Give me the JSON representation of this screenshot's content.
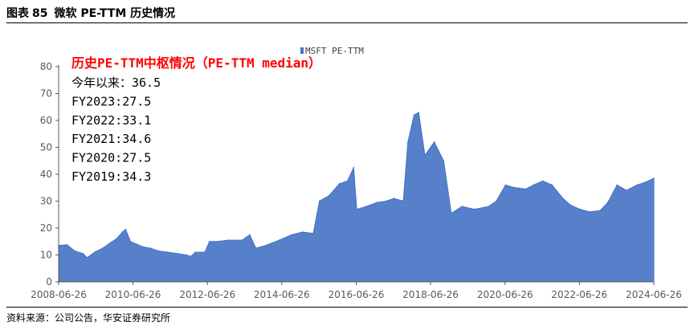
{
  "figure": {
    "label": "图表",
    "number": "85",
    "title": "微软 PE-TTM 历史情况"
  },
  "source": "资料来源：公司公告，华安证券研究所",
  "annotations": {
    "title": "历史PE-TTM中枢情况（PE-TTM median）",
    "lines": [
      "今年以来：36.5",
      "FY2023:27.5",
      "FY2022:33.1",
      "FY2021:34.6",
      "FY2020:27.5",
      "FY2019:34.3"
    ]
  },
  "colors": {
    "series": "#4472c4",
    "annotation_title": "#ff0000",
    "axis": "#595959"
  },
  "chart_data": {
    "type": "area",
    "title": "",
    "xlabel": "",
    "ylabel": "",
    "xlim": [
      "2008-06-26",
      "2024-06-26"
    ],
    "ylim": [
      0,
      80
    ],
    "yticks": [
      0,
      10,
      20,
      30,
      40,
      50,
      60,
      70,
      80
    ],
    "xticks": [
      "2008-06-26",
      "2010-06-26",
      "2012-06-26",
      "2014-06-26",
      "2016-06-26",
      "2018-06-26",
      "2020-06-26",
      "2022-06-26",
      "2024-06-26"
    ],
    "grid": false,
    "legend": "top-center",
    "series": [
      {
        "name": "MSFT PE-TTM",
        "points": [
          [
            "2008-06-26",
            13.5
          ],
          [
            "2008-09-15",
            13.8
          ],
          [
            "2008-12-01",
            11.5
          ],
          [
            "2009-02-20",
            10.5
          ],
          [
            "2009-04-01",
            9.0
          ],
          [
            "2009-06-15",
            11.0
          ],
          [
            "2009-09-01",
            12.5
          ],
          [
            "2009-11-15",
            14.5
          ],
          [
            "2010-01-15",
            16.0
          ],
          [
            "2010-03-15",
            18.5
          ],
          [
            "2010-04-15",
            19.5
          ],
          [
            "2010-06-01",
            15.0
          ],
          [
            "2010-08-01",
            14.0
          ],
          [
            "2010-10-01",
            13.0
          ],
          [
            "2010-12-15",
            12.5
          ],
          [
            "2011-03-01",
            11.5
          ],
          [
            "2011-06-01",
            11.0
          ],
          [
            "2011-09-01",
            10.5
          ],
          [
            "2011-12-01",
            10.0
          ],
          [
            "2012-01-15",
            9.5
          ],
          [
            "2012-03-01",
            11.0
          ],
          [
            "2012-06-01",
            11.0
          ],
          [
            "2012-07-15",
            15.0
          ],
          [
            "2012-10-01",
            15.0
          ],
          [
            "2013-01-15",
            15.5
          ],
          [
            "2013-06-01",
            15.5
          ],
          [
            "2013-08-15",
            17.5
          ],
          [
            "2013-10-15",
            12.5
          ],
          [
            "2014-01-15",
            13.5
          ],
          [
            "2014-06-01",
            15.5
          ],
          [
            "2014-10-01",
            17.5
          ],
          [
            "2015-01-15",
            18.5
          ],
          [
            "2015-05-01",
            18.0
          ],
          [
            "2015-07-01",
            30.0
          ],
          [
            "2015-10-01",
            32.0
          ],
          [
            "2016-01-15",
            36.5
          ],
          [
            "2016-04-01",
            37.5
          ],
          [
            "2016-06-01",
            42.5
          ],
          [
            "2016-07-01",
            27.0
          ],
          [
            "2016-10-01",
            28.0
          ],
          [
            "2017-01-15",
            29.5
          ],
          [
            "2017-04-15",
            30.0
          ],
          [
            "2017-07-01",
            31.0
          ],
          [
            "2017-10-01",
            30.0
          ],
          [
            "2017-11-15",
            52.0
          ],
          [
            "2018-01-15",
            62.0
          ],
          [
            "2018-03-01",
            63.0
          ],
          [
            "2018-05-01",
            47.0
          ],
          [
            "2018-08-01",
            52.0
          ],
          [
            "2018-11-01",
            45.0
          ],
          [
            "2019-01-15",
            25.5
          ],
          [
            "2019-05-01",
            28.0
          ],
          [
            "2019-09-01",
            27.0
          ],
          [
            "2020-01-15",
            28.0
          ],
          [
            "2020-04-01",
            30.0
          ],
          [
            "2020-07-01",
            36.0
          ],
          [
            "2020-10-01",
            35.0
          ],
          [
            "2021-01-15",
            34.5
          ],
          [
            "2021-04-01",
            36.0
          ],
          [
            "2021-07-01",
            37.5
          ],
          [
            "2021-10-01",
            36.0
          ],
          [
            "2022-01-15",
            31.0
          ],
          [
            "2022-04-01",
            28.5
          ],
          [
            "2022-07-01",
            27.0
          ],
          [
            "2022-10-01",
            26.0
          ],
          [
            "2023-01-15",
            26.5
          ],
          [
            "2023-04-01",
            29.5
          ],
          [
            "2023-07-01",
            36.0
          ],
          [
            "2023-10-01",
            34.0
          ],
          [
            "2024-01-15",
            36.0
          ],
          [
            "2024-04-01",
            37.0
          ],
          [
            "2024-06-26",
            38.5
          ]
        ]
      }
    ]
  }
}
